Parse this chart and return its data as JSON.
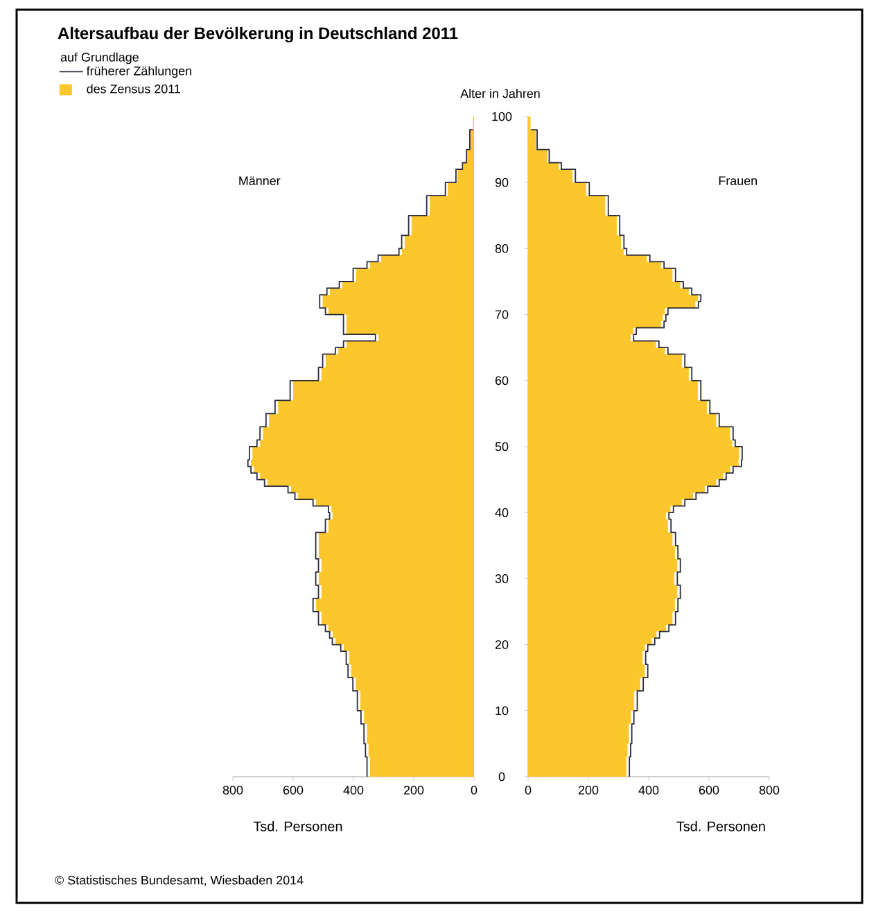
{
  "chart_data": [
    {
      "type": "area",
      "orientation": "horizontal",
      "title": "Männer",
      "xlabel": "Tsd. Personen",
      "legend_title": "auf Grundlage",
      "legend": "top left",
      "tick_labels": "x",
      "annotations": [
        "Altersaufbau der Bevölkerung in Deutschland 2011",
        "© Statistisches Bundesamt, Wiesbaden 2014"
      ],
      "xlim": [
        800,
        0
      ],
      "xticks": [
        0,
        200,
        400,
        600,
        800
      ],
      "ylim": [
        0,
        100
      ],
      "yticks": [
        0,
        10,
        20,
        30,
        40,
        50,
        60,
        70,
        80,
        90,
        100
      ],
      "x": [
        0,
        3,
        5,
        8,
        10,
        13,
        15,
        17,
        19,
        20,
        21,
        22,
        23,
        25,
        27,
        29,
        31,
        33,
        35,
        37,
        39,
        40,
        41,
        42,
        43,
        44,
        45,
        46,
        47,
        48,
        50,
        51,
        53,
        55,
        57,
        60,
        62,
        64,
        65,
        66,
        67,
        68,
        69,
        70,
        71,
        72,
        73,
        74,
        75,
        77,
        78,
        79,
        80,
        82,
        85,
        88,
        90,
        92,
        93,
        95,
        98,
        100
      ],
      "series": [
        {
          "name": "früherer Zählungen",
          "type": "step",
          "color": "#2b2b3a",
          "values": [
            355,
            360,
            365,
            375,
            387,
            402,
            418,
            424,
            442,
            470,
            479,
            493,
            516,
            534,
            516,
            525,
            516,
            525,
            525,
            493,
            479,
            483,
            534,
            594,
            617,
            695,
            720,
            740,
            750,
            745,
            720,
            710,
            690,
            660,
            610,
            516,
            502,
            460,
            433,
            327,
            433,
            433,
            433,
            493,
            512,
            512,
            488,
            447,
            401,
            355,
            318,
            249,
            240,
            217,
            157,
            95,
            60,
            38,
            25,
            14,
            4,
            null
          ]
        },
        {
          "name": "des Zensus 2011",
          "type": "area",
          "color": "#fcc72c",
          "values": [
            345,
            350,
            355,
            365,
            377,
            392,
            408,
            414,
            432,
            460,
            469,
            483,
            506,
            524,
            506,
            515,
            506,
            515,
            515,
            483,
            469,
            473,
            524,
            584,
            607,
            685,
            710,
            730,
            740,
            735,
            710,
            700,
            680,
            650,
            600,
            506,
            492,
            450,
            423,
            317,
            423,
            423,
            423,
            483,
            502,
            502,
            478,
            437,
            391,
            345,
            308,
            239,
            230,
            207,
            147,
            87,
            55,
            35,
            23,
            12,
            3,
            1
          ]
        }
      ]
    },
    {
      "type": "area",
      "orientation": "horizontal",
      "title": "Frauen",
      "xlabel": "Tsd. Personen",
      "ylabel": "Alter in Jahren",
      "xlim": [
        0,
        800
      ],
      "xticks": [
        0,
        200,
        400,
        600,
        800
      ],
      "ylim": [
        0,
        100
      ],
      "yticks": [
        0,
        10,
        20,
        30,
        40,
        50,
        60,
        70,
        80,
        90,
        100
      ],
      "x": [
        0,
        3,
        5,
        8,
        10,
        13,
        15,
        17,
        19,
        20,
        21,
        22,
        23,
        25,
        27,
        29,
        31,
        33,
        35,
        37,
        39,
        40,
        41,
        42,
        43,
        44,
        45,
        46,
        47,
        48,
        50,
        51,
        53,
        55,
        57,
        60,
        62,
        64,
        65,
        66,
        67,
        68,
        69,
        70,
        71,
        72,
        73,
        74,
        75,
        77,
        78,
        79,
        80,
        82,
        85,
        88,
        90,
        92,
        93,
        95,
        98,
        100
      ],
      "series": [
        {
          "type": "step",
          "color": "#2b2b3a",
          "values": [
            336,
            340,
            344,
            351,
            362,
            382,
            397,
            390,
            397,
            420,
            436,
            467,
            489,
            497,
            505,
            495,
            505,
            497,
            489,
            474,
            467,
            482,
            520,
            557,
            596,
            634,
            657,
            680,
            708,
            710,
            687,
            680,
            634,
            603,
            573,
            543,
            520,
            464,
            434,
            350,
            359,
            451,
            457,
            464,
            565,
            573,
            543,
            515,
            489,
            451,
            404,
            327,
            318,
            304,
            266,
            203,
            157,
            110,
            70,
            30,
            10,
            null
          ]
        },
        {
          "type": "area",
          "color": "#fcc72c",
          "values": [
            326,
            330,
            334,
            341,
            352,
            372,
            387,
            380,
            387,
            410,
            426,
            457,
            479,
            487,
            495,
            485,
            495,
            487,
            479,
            464,
            457,
            472,
            510,
            547,
            586,
            624,
            647,
            670,
            698,
            700,
            677,
            670,
            624,
            593,
            563,
            533,
            510,
            454,
            424,
            340,
            349,
            441,
            447,
            454,
            555,
            563,
            533,
            505,
            479,
            441,
            394,
            317,
            308,
            294,
            256,
            193,
            147,
            102,
            64,
            26,
            8,
            2
          ]
        }
      ]
    }
  ]
}
